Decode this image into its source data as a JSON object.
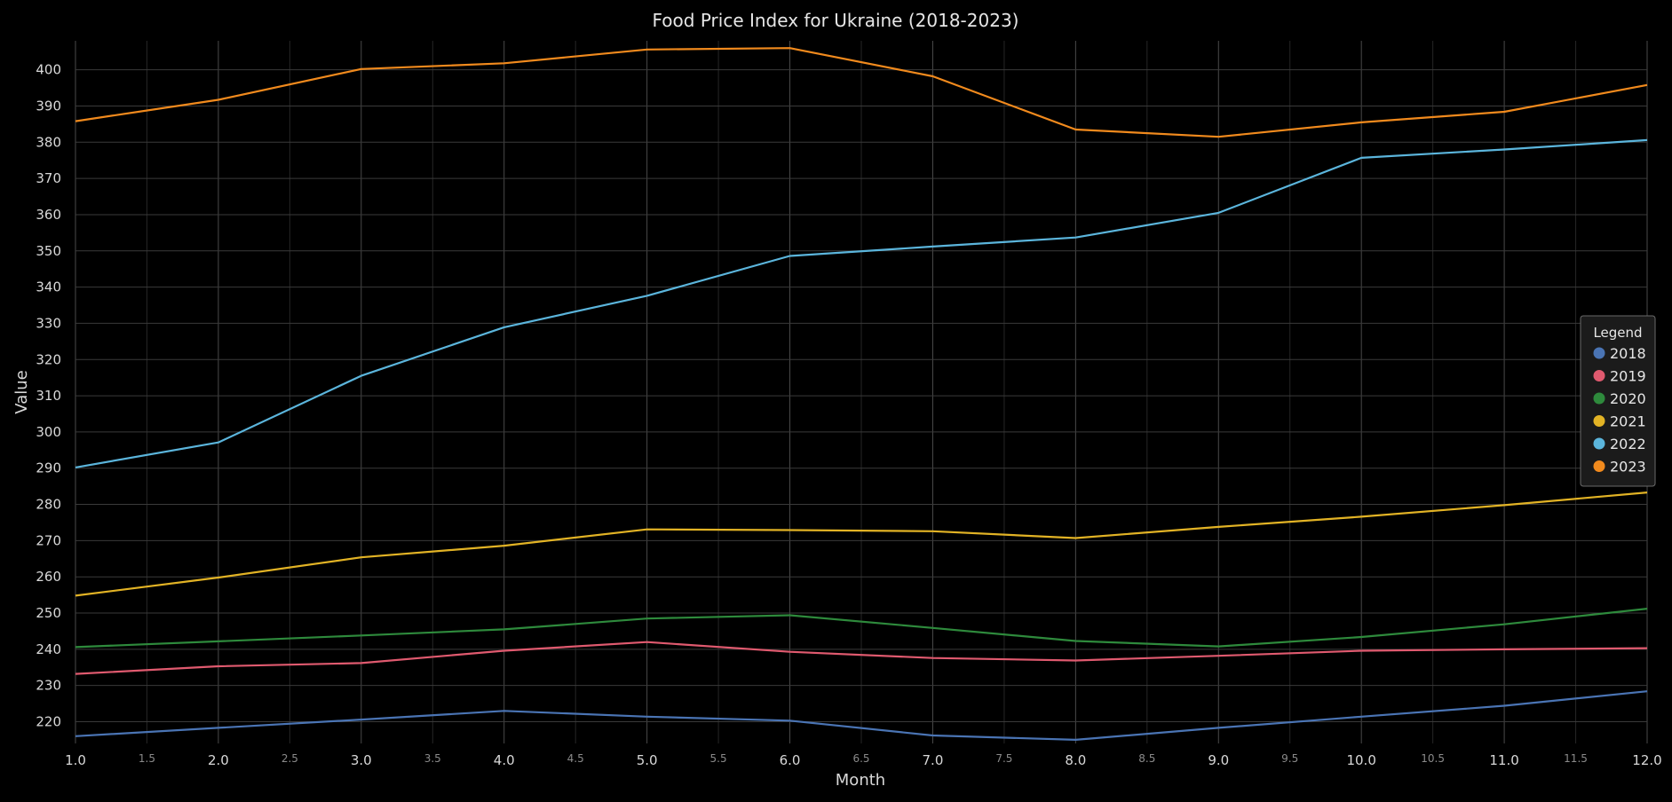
{
  "chart_data": {
    "type": "line",
    "title": "Food Price Index for Ukraine (2018-2023)",
    "xlabel": "Month",
    "ylabel": "Value",
    "xlim": [
      1,
      12
    ],
    "ylim": [
      214,
      408
    ],
    "x_major_ticks": [
      "1.0",
      "2.0",
      "3.0",
      "4.0",
      "5.0",
      "6.0",
      "7.0",
      "8.0",
      "9.0",
      "10.0",
      "11.0",
      "12.0"
    ],
    "x_minor_ticks": [
      "1.5",
      "2.5",
      "3.5",
      "4.5",
      "5.5",
      "6.5",
      "7.5",
      "8.5",
      "9.5",
      "10.5",
      "11.5"
    ],
    "y_ticks": [
      "220",
      "230",
      "240",
      "250",
      "260",
      "270",
      "280",
      "290",
      "300",
      "310",
      "320",
      "330",
      "340",
      "350",
      "360",
      "370",
      "380",
      "390",
      "400"
    ],
    "grid": true,
    "legend": {
      "title": "Legend",
      "position": "right"
    },
    "x": [
      1,
      2,
      3,
      4,
      5,
      6,
      7,
      8,
      9,
      10,
      11,
      12
    ],
    "series": [
      {
        "name": "2018",
        "color": "#4a74b4",
        "values": [
          216.0,
          218.3,
          220.6,
          223.0,
          221.4,
          220.3,
          216.2,
          215.0,
          218.3,
          221.4,
          224.4,
          228.4
        ]
      },
      {
        "name": "2019",
        "color": "#e05a6f",
        "values": [
          233.2,
          235.3,
          236.2,
          239.6,
          242.0,
          239.3,
          237.6,
          236.9,
          238.2,
          239.6,
          240.0,
          240.3
        ]
      },
      {
        "name": "2020",
        "color": "#2e8a3c",
        "values": [
          240.6,
          242.2,
          243.8,
          245.5,
          248.5,
          249.4,
          245.9,
          242.3,
          240.8,
          243.4,
          246.9,
          251.2
        ]
      },
      {
        "name": "2021",
        "color": "#e2b325",
        "values": [
          254.8,
          259.8,
          265.4,
          268.6,
          273.1,
          272.9,
          272.6,
          270.7,
          273.8,
          276.6,
          279.8,
          283.3
        ]
      },
      {
        "name": "2022",
        "color": "#5bb5dc",
        "values": [
          290.2,
          297.1,
          315.5,
          328.9,
          337.6,
          348.6,
          351.2,
          353.7,
          360.5,
          375.7,
          378.0,
          380.6
        ]
      },
      {
        "name": "2023",
        "color": "#f18a1d",
        "values": [
          385.8,
          391.7,
          400.2,
          401.8,
          405.6,
          406.0,
          398.2,
          383.5,
          381.5,
          385.5,
          388.4,
          395.8
        ]
      }
    ]
  }
}
